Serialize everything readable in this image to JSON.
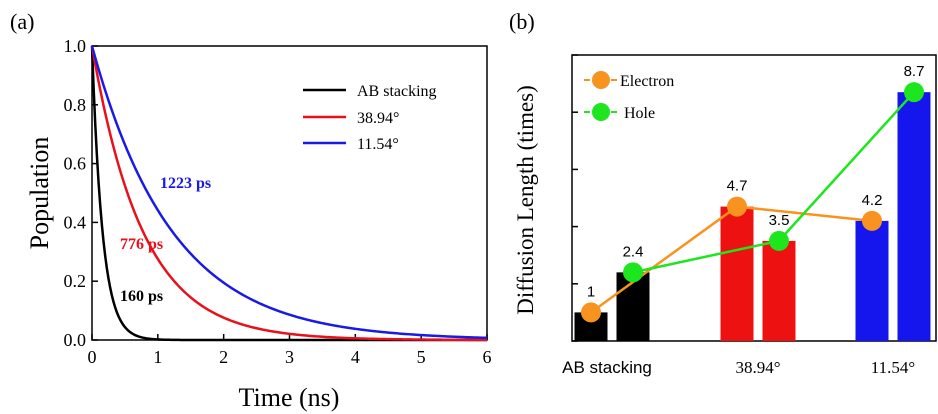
{
  "chart_data": [
    {
      "type": "line",
      "panel_label": "(a)",
      "xlabel": "Time (ns)",
      "ylabel": "Population",
      "xlim": [
        0,
        6
      ],
      "ylim": [
        0,
        1.0
      ],
      "xticks": [
        "0",
        "1",
        "2",
        "3",
        "4",
        "5",
        "6"
      ],
      "yticks": [
        "0.0",
        "0.2",
        "0.4",
        "0.6",
        "0.8",
        "1.0"
      ],
      "legend_position": "top-right",
      "series": [
        {
          "name": "AB stacking",
          "color": "#000000",
          "lifetime_ps": 160,
          "annotation": "160 ps",
          "x": [
            0,
            0.1,
            0.2,
            0.3,
            0.4,
            0.5,
            0.6,
            0.8,
            1.0,
            1.5,
            6
          ],
          "y": [
            1.0,
            0.535,
            0.287,
            0.153,
            0.082,
            0.044,
            0.024,
            0.007,
            0.002,
            0.0,
            0.0
          ]
        },
        {
          "name": "38.94°",
          "color": "#e8101b",
          "lifetime_ps": 776,
          "annotation": "776 ps",
          "x": [
            0,
            0.25,
            0.5,
            0.75,
            1.0,
            1.5,
            2.0,
            2.5,
            3.0,
            4.0,
            5.0,
            6.0
          ],
          "y": [
            1.0,
            0.725,
            0.525,
            0.381,
            0.276,
            0.145,
            0.076,
            0.04,
            0.021,
            0.006,
            0.002,
            0.0
          ]
        },
        {
          "name": "11.54°",
          "color": "#1a1ae6",
          "lifetime_ps": 1223,
          "annotation": "1223 ps",
          "x": [
            0,
            0.25,
            0.5,
            0.75,
            1.0,
            1.5,
            2.0,
            2.5,
            3.0,
            3.5,
            4.0,
            5.0,
            6.0
          ],
          "y": [
            1.0,
            0.815,
            0.665,
            0.541,
            0.441,
            0.293,
            0.195,
            0.13,
            0.086,
            0.057,
            0.038,
            0.017,
            0.007
          ]
        }
      ]
    },
    {
      "type": "bar",
      "panel_label": "(b)",
      "ylabel": "Diffusion Length (times)",
      "categories": [
        "AB stacking",
        "38.94°",
        "11.54°"
      ],
      "ylim": [
        0,
        10
      ],
      "legend_position": "top-left",
      "series": [
        {
          "name": "Electron",
          "color": "#f7931e",
          "values": [
            1,
            4.7,
            4.2
          ],
          "labels": [
            "1",
            "4.7",
            "4.2"
          ]
        },
        {
          "name": "Hole",
          "color": "#1ee61e",
          "values": [
            2.4,
            3.5,
            8.7
          ],
          "labels": [
            "2.4",
            "3.5",
            "8.7"
          ]
        }
      ],
      "bar_colors": [
        "#000000",
        "#ee1111",
        "#1515ee"
      ]
    }
  ]
}
